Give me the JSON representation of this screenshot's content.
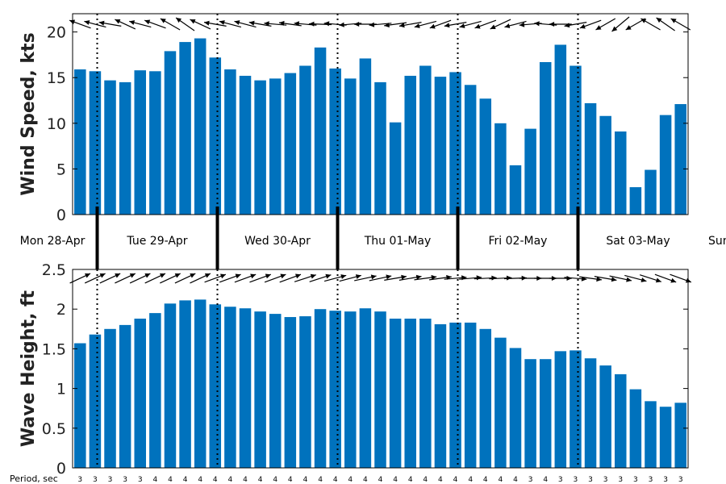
{
  "chart_data": [
    {
      "type": "bar",
      "ylabel": "Wind Speed, kts",
      "ylim": [
        0,
        22
      ],
      "yticks": [
        0,
        5,
        10,
        15,
        20
      ],
      "color": "#0072bd",
      "values": [
        15.9,
        15.7,
        14.7,
        14.5,
        15.8,
        15.7,
        17.9,
        18.9,
        19.3,
        17.2,
        15.9,
        15.2,
        14.7,
        14.9,
        15.5,
        16.3,
        18.3,
        16.0,
        14.9,
        17.1,
        14.5,
        10.1,
        15.2,
        16.3,
        15.1,
        15.6,
        14.2,
        12.7,
        10.0,
        5.4,
        9.4,
        16.7,
        18.6,
        16.3,
        12.2,
        10.8,
        9.1,
        3.0,
        4.9,
        10.9,
        12.1
      ],
      "direction_arrows_deg": [
        200,
        195,
        190,
        205,
        195,
        200,
        210,
        215,
        205,
        190,
        195,
        195,
        190,
        185,
        188,
        185,
        182,
        185,
        175,
        180,
        175,
        172,
        170,
        165,
        160,
        170,
        165,
        160,
        155,
        165,
        175,
        185,
        180,
        170,
        160,
        150,
        140,
        150,
        210,
        215,
        210
      ],
      "grid": false
    },
    {
      "type": "bar",
      "ylabel": "Wave Height, ft",
      "ylim": [
        0,
        2.5
      ],
      "yticks": [
        0,
        0.5,
        1,
        1.5,
        2,
        2.5
      ],
      "color": "#0072bd",
      "values": [
        1.57,
        1.68,
        1.75,
        1.8,
        1.88,
        1.95,
        2.07,
        2.11,
        2.12,
        2.06,
        2.03,
        2.01,
        1.97,
        1.94,
        1.9,
        1.91,
        2.0,
        1.98,
        1.97,
        2.01,
        1.97,
        1.88,
        1.88,
        1.88,
        1.81,
        1.83,
        1.83,
        1.75,
        1.64,
        1.51,
        1.37,
        1.37,
        1.47,
        1.48,
        1.38,
        1.29,
        1.18,
        0.99,
        0.84,
        0.77,
        0.82
      ],
      "direction_arrows_deg": [
        -25,
        -25,
        -25,
        -25,
        -25,
        -25,
        -25,
        -25,
        -25,
        -20,
        -20,
        -20,
        -20,
        -20,
        -20,
        -18,
        -18,
        -15,
        -15,
        -12,
        -12,
        -10,
        -10,
        -8,
        -8,
        -5,
        -5,
        -3,
        -3,
        -2,
        0,
        0,
        0,
        5,
        8,
        10,
        12,
        15,
        18,
        20,
        20
      ],
      "grid": false
    }
  ],
  "days": [
    {
      "label": "Mon 28-Apr"
    },
    {
      "label": "Tue 29-Apr"
    },
    {
      "label": "Wed 30-Apr"
    },
    {
      "label": "Thu 01-May"
    },
    {
      "label": "Fri 02-May"
    },
    {
      "label": "Sat 03-May"
    },
    {
      "label": "Sun"
    }
  ],
  "period": {
    "title": "Period, sec",
    "values": [
      3,
      3,
      3,
      3,
      3,
      4,
      4,
      4,
      4,
      4,
      4,
      4,
      4,
      4,
      4,
      4,
      4,
      4,
      4,
      4,
      4,
      4,
      4,
      4,
      4,
      4,
      4,
      4,
      4,
      4,
      3,
      4,
      3,
      3,
      3,
      3,
      3,
      3,
      3,
      3,
      3
    ]
  }
}
